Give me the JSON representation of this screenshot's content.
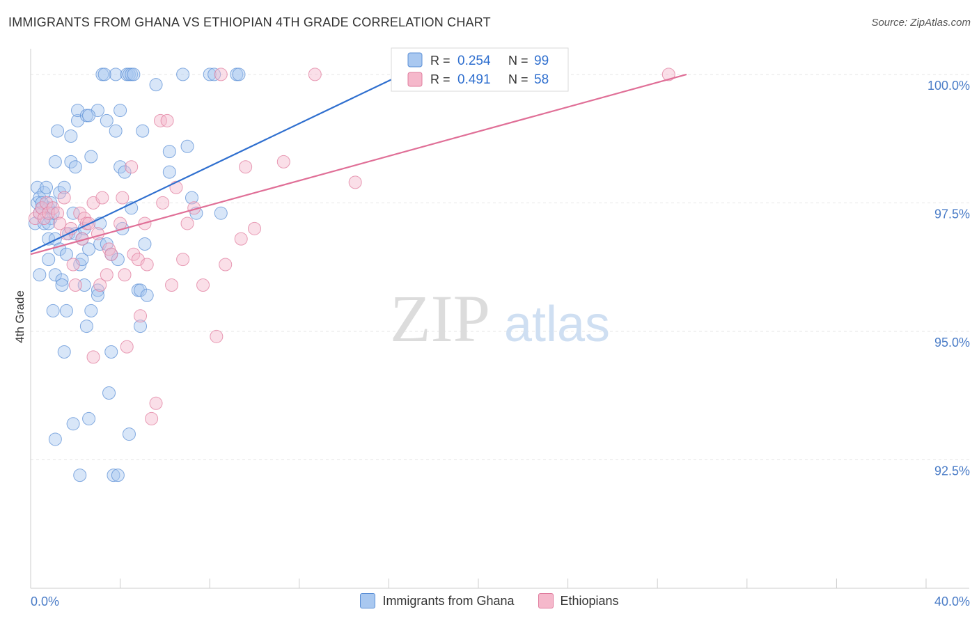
{
  "header": {
    "title": "IMMIGRANTS FROM GHANA VS ETHIOPIAN 4TH GRADE CORRELATION CHART",
    "source": "Source: ZipAtlas.com"
  },
  "watermark": {
    "zip": "ZIP",
    "atlas": "atlas"
  },
  "colors": {
    "blue_fill": "#a9c8f0",
    "blue_stroke": "#5b8fd6",
    "blue_line": "#2f6fcf",
    "pink_fill": "#f5b8cb",
    "pink_stroke": "#e07c9e",
    "pink_line": "#e06f97",
    "tick_label": "#4a7cc7",
    "grid": "#e5e5e5"
  },
  "legend": {
    "rows": [
      {
        "r_label": "R = ",
        "r_value": "0.254",
        "n_label": "N = ",
        "n_value": "99"
      },
      {
        "r_label": "R = ",
        "r_value": "0.491",
        "n_label": "N = ",
        "n_value": "58"
      }
    ]
  },
  "chart_data": {
    "type": "scatter",
    "title": "IMMIGRANTS FROM GHANA VS ETHIOPIAN 4TH GRADE CORRELATION CHART",
    "xlabel": "",
    "ylabel": "4th Grade",
    "xlim": [
      0,
      40
    ],
    "ylim": [
      90.0,
      100.5
    ],
    "x_tick_labels": [
      "0.0%",
      "40.0%"
    ],
    "y_ticks": [
      92.5,
      95.0,
      97.5,
      100.0
    ],
    "y_tick_labels": [
      "92.5%",
      "95.0%",
      "97.5%",
      "100.0%"
    ],
    "grid": true,
    "legend_position": "top-center",
    "series": [
      {
        "name": "Immigrants from Ghana",
        "r": 0.254,
        "n": 99,
        "trend": {
          "x": [
            0.0,
            19.0
          ],
          "y": [
            96.55,
            100.5
          ]
        },
        "points": [
          [
            0.2,
            97.1
          ],
          [
            0.3,
            97.8
          ],
          [
            0.3,
            97.5
          ],
          [
            0.4,
            97.3
          ],
          [
            0.4,
            97.6
          ],
          [
            0.5,
            97.4
          ],
          [
            0.4,
            96.1
          ],
          [
            0.6,
            97.1
          ],
          [
            0.6,
            97.7
          ],
          [
            0.7,
            97.8
          ],
          [
            0.8,
            96.4
          ],
          [
            0.8,
            96.8
          ],
          [
            0.8,
            97.4
          ],
          [
            0.9,
            97.5
          ],
          [
            0.9,
            97.2
          ],
          [
            1.0,
            97.3
          ],
          [
            1.0,
            95.4
          ],
          [
            1.1,
            96.1
          ],
          [
            1.1,
            96.8
          ],
          [
            1.1,
            98.3
          ],
          [
            1.2,
            98.9
          ],
          [
            1.3,
            97.7
          ],
          [
            1.3,
            96.6
          ],
          [
            1.4,
            96.0
          ],
          [
            1.4,
            95.9
          ],
          [
            1.5,
            94.6
          ],
          [
            1.6,
            95.4
          ],
          [
            1.6,
            96.5
          ],
          [
            1.7,
            96.9
          ],
          [
            1.8,
            98.3
          ],
          [
            1.8,
            98.8
          ],
          [
            1.9,
            93.2
          ],
          [
            2.0,
            96.9
          ],
          [
            2.0,
            98.2
          ],
          [
            2.1,
            99.1
          ],
          [
            2.1,
            99.3
          ],
          [
            2.2,
            96.3
          ],
          [
            2.3,
            96.4
          ],
          [
            2.3,
            96.8
          ],
          [
            2.4,
            97.0
          ],
          [
            2.4,
            95.9
          ],
          [
            2.5,
            99.2
          ],
          [
            2.5,
            95.1
          ],
          [
            2.6,
            93.3
          ],
          [
            2.6,
            96.6
          ],
          [
            2.7,
            95.4
          ],
          [
            2.7,
            98.4
          ],
          [
            3.0,
            99.3
          ],
          [
            3.0,
            95.8
          ],
          [
            3.0,
            95.7
          ],
          [
            3.1,
            96.7
          ],
          [
            3.1,
            97.1
          ],
          [
            3.2,
            100.0
          ],
          [
            3.4,
            96.7
          ],
          [
            3.4,
            99.1
          ],
          [
            3.5,
            93.8
          ],
          [
            3.6,
            94.6
          ],
          [
            3.6,
            96.5
          ],
          [
            3.7,
            92.2
          ],
          [
            3.8,
            100.0
          ],
          [
            3.8,
            98.9
          ],
          [
            3.9,
            96.4
          ],
          [
            3.9,
            92.2
          ],
          [
            4.0,
            99.3
          ],
          [
            4.0,
            98.2
          ],
          [
            4.1,
            97.0
          ],
          [
            4.2,
            98.1
          ],
          [
            4.3,
            100.0
          ],
          [
            4.4,
            93.0
          ],
          [
            4.4,
            100.0
          ],
          [
            4.5,
            100.0
          ],
          [
            4.5,
            97.4
          ],
          [
            4.8,
            95.8
          ],
          [
            4.9,
            95.8
          ],
          [
            4.9,
            95.1
          ],
          [
            5.0,
            98.9
          ],
          [
            5.1,
            96.7
          ],
          [
            5.2,
            95.7
          ],
          [
            5.6,
            99.8
          ],
          [
            6.2,
            98.1
          ],
          [
            6.2,
            98.5
          ],
          [
            6.8,
            100.0
          ],
          [
            7.0,
            98.6
          ],
          [
            7.2,
            97.6
          ],
          [
            7.4,
            97.3
          ],
          [
            8.0,
            100.0
          ],
          [
            8.2,
            100.0
          ],
          [
            8.5,
            97.3
          ],
          [
            9.2,
            100.0
          ],
          [
            9.3,
            100.0
          ],
          [
            0.5,
            97.5
          ],
          [
            1.5,
            97.8
          ],
          [
            2.6,
            99.2
          ],
          [
            1.1,
            92.9
          ],
          [
            2.2,
            92.2
          ],
          [
            0.8,
            97.1
          ],
          [
            1.9,
            97.3
          ],
          [
            3.3,
            100.0
          ],
          [
            4.6,
            100.0
          ]
        ]
      },
      {
        "name": "Ethiopians",
        "r": 0.491,
        "n": 58,
        "trend": {
          "x": [
            0.0,
            29.3
          ],
          "y": [
            96.5,
            100.0
          ]
        },
        "points": [
          [
            0.2,
            97.2
          ],
          [
            0.4,
            97.3
          ],
          [
            0.5,
            97.4
          ],
          [
            0.6,
            97.2
          ],
          [
            0.7,
            97.5
          ],
          [
            0.8,
            97.3
          ],
          [
            1.0,
            97.4
          ],
          [
            1.2,
            97.3
          ],
          [
            1.3,
            97.1
          ],
          [
            1.5,
            97.6
          ],
          [
            1.6,
            96.9
          ],
          [
            1.8,
            97.0
          ],
          [
            1.9,
            96.3
          ],
          [
            2.0,
            95.9
          ],
          [
            2.2,
            97.3
          ],
          [
            2.3,
            96.8
          ],
          [
            2.4,
            97.2
          ],
          [
            2.5,
            97.1
          ],
          [
            2.6,
            97.1
          ],
          [
            2.8,
            97.5
          ],
          [
            2.8,
            94.5
          ],
          [
            3.0,
            96.9
          ],
          [
            3.1,
            95.9
          ],
          [
            3.2,
            97.6
          ],
          [
            3.4,
            96.1
          ],
          [
            3.5,
            96.6
          ],
          [
            3.6,
            96.5
          ],
          [
            4.0,
            97.1
          ],
          [
            4.1,
            97.6
          ],
          [
            4.2,
            96.1
          ],
          [
            4.3,
            94.7
          ],
          [
            4.5,
            98.2
          ],
          [
            4.6,
            96.5
          ],
          [
            4.8,
            96.4
          ],
          [
            4.9,
            95.3
          ],
          [
            5.1,
            97.1
          ],
          [
            5.2,
            96.3
          ],
          [
            5.4,
            93.3
          ],
          [
            5.6,
            93.6
          ],
          [
            5.8,
            99.1
          ],
          [
            5.9,
            97.5
          ],
          [
            6.1,
            99.1
          ],
          [
            6.3,
            95.9
          ],
          [
            6.5,
            97.8
          ],
          [
            6.8,
            96.4
          ],
          [
            7.0,
            97.1
          ],
          [
            7.3,
            97.4
          ],
          [
            7.7,
            95.9
          ],
          [
            8.3,
            94.9
          ],
          [
            8.5,
            100.0
          ],
          [
            8.7,
            96.3
          ],
          [
            9.4,
            96.8
          ],
          [
            9.6,
            98.2
          ],
          [
            10.0,
            97.0
          ],
          [
            11.3,
            98.3
          ],
          [
            12.7,
            100.0
          ],
          [
            14.5,
            97.9
          ],
          [
            28.5,
            100.0
          ]
        ]
      }
    ]
  },
  "bottom_legend": {
    "ghana": "Immigrants from Ghana",
    "ethiopians": "Ethiopians"
  }
}
